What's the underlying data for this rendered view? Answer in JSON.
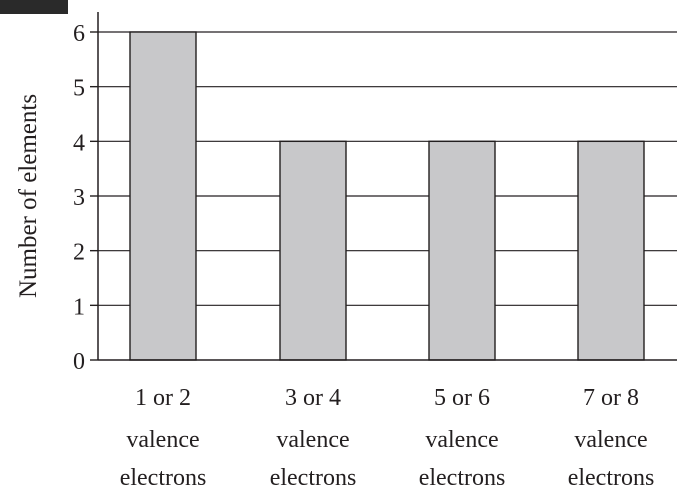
{
  "chart_data": {
    "type": "bar",
    "categories": [
      [
        "1 or 2",
        "valence",
        "electrons"
      ],
      [
        "3 or 4",
        "valence",
        "electrons"
      ],
      [
        "5 or 6",
        "valence",
        "electrons"
      ],
      [
        "7 or 8",
        "valence",
        "electrons"
      ]
    ],
    "values": [
      6,
      4,
      4,
      4
    ],
    "title": "",
    "xlabel": "",
    "ylabel": "Number of elements",
    "ylim": [
      0,
      6
    ],
    "yticks": [
      "0",
      "1",
      "2",
      "3",
      "4",
      "5",
      "6"
    ],
    "grid": true,
    "legend": "none",
    "colors": {
      "bar_fill": "#c8c8ca",
      "bar_stroke": "#231f20",
      "grid": "#231f20",
      "axis": "#231f20",
      "corner_tab": "#2a2a2a"
    }
  }
}
